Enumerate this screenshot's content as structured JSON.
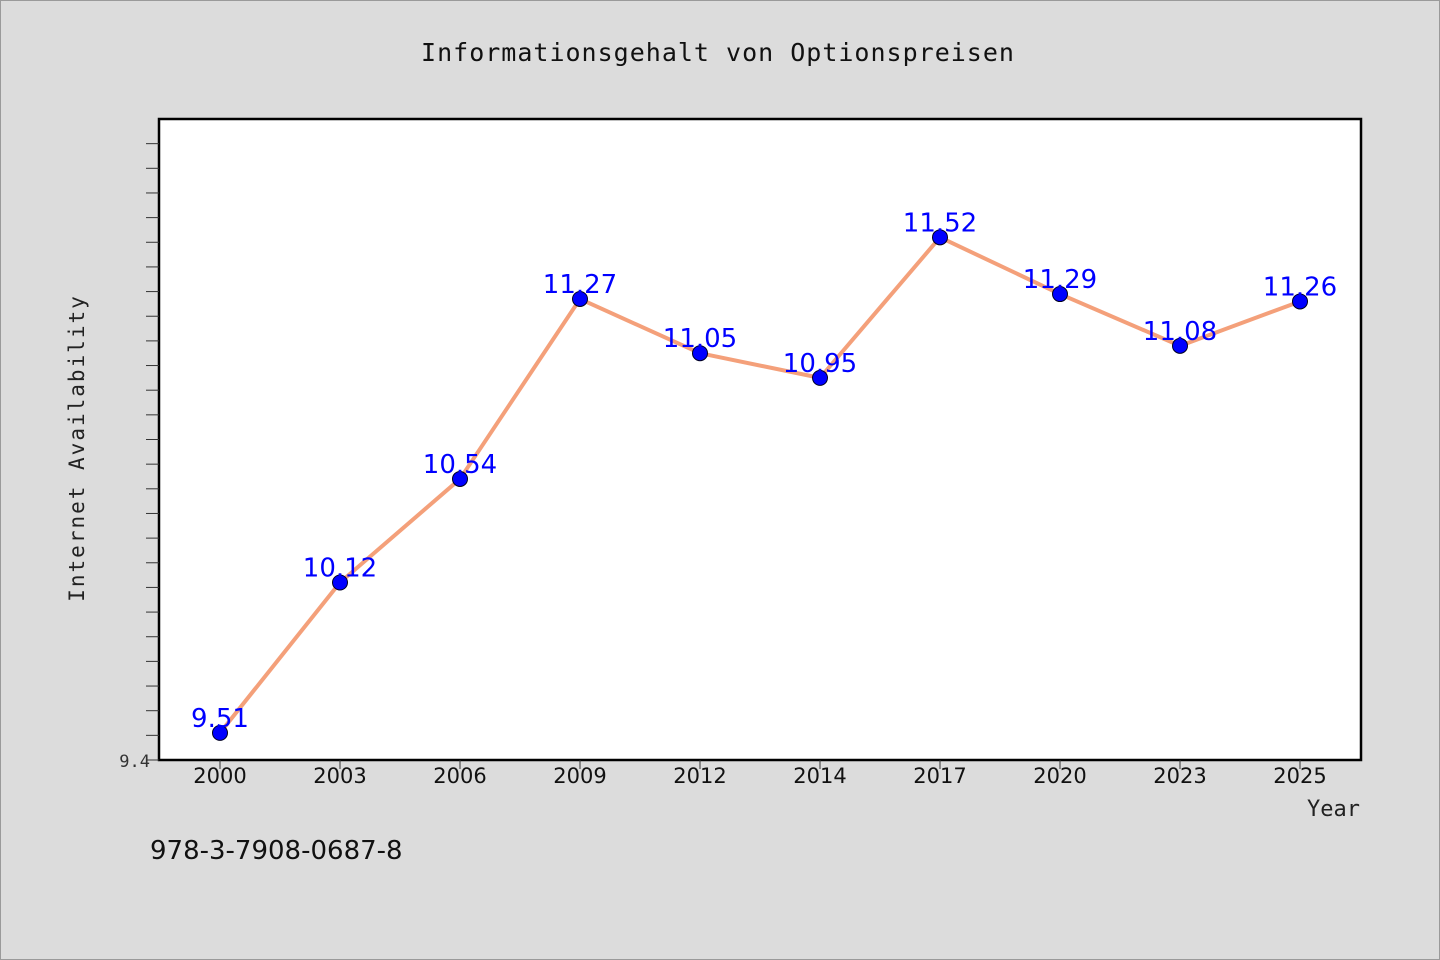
{
  "chart_data": {
    "type": "line",
    "title": "Informationsgehalt von Optionspreisen",
    "xlabel": "Year",
    "ylabel": "Internet Availability",
    "categories": [
      "2000",
      "2003",
      "2006",
      "2009",
      "2012",
      "2014",
      "2017",
      "2020",
      "2023",
      "2025"
    ],
    "series": [
      {
        "values": [
          9.51,
          10.12,
          10.54,
          11.27,
          11.05,
          10.95,
          11.52,
          11.29,
          11.08,
          11.26
        ],
        "labels": [
          "9.51",
          "10.12",
          "10.54",
          "11.27",
          "11.05",
          "10.95",
          "11.52",
          "11.29",
          "11.08",
          "11.26"
        ]
      }
    ],
    "y_tick_labels": [
      "9.4"
    ],
    "ylim": [
      9.4,
      12.0
    ],
    "grid": false,
    "colors": {
      "line": "#f4a07a",
      "marker": "#0000ff",
      "label": "#0000ff",
      "background": "#dcdcdc",
      "plot_background": "#ffffff"
    }
  },
  "footer": {
    "isbn": "978-3-7908-0687-8"
  }
}
